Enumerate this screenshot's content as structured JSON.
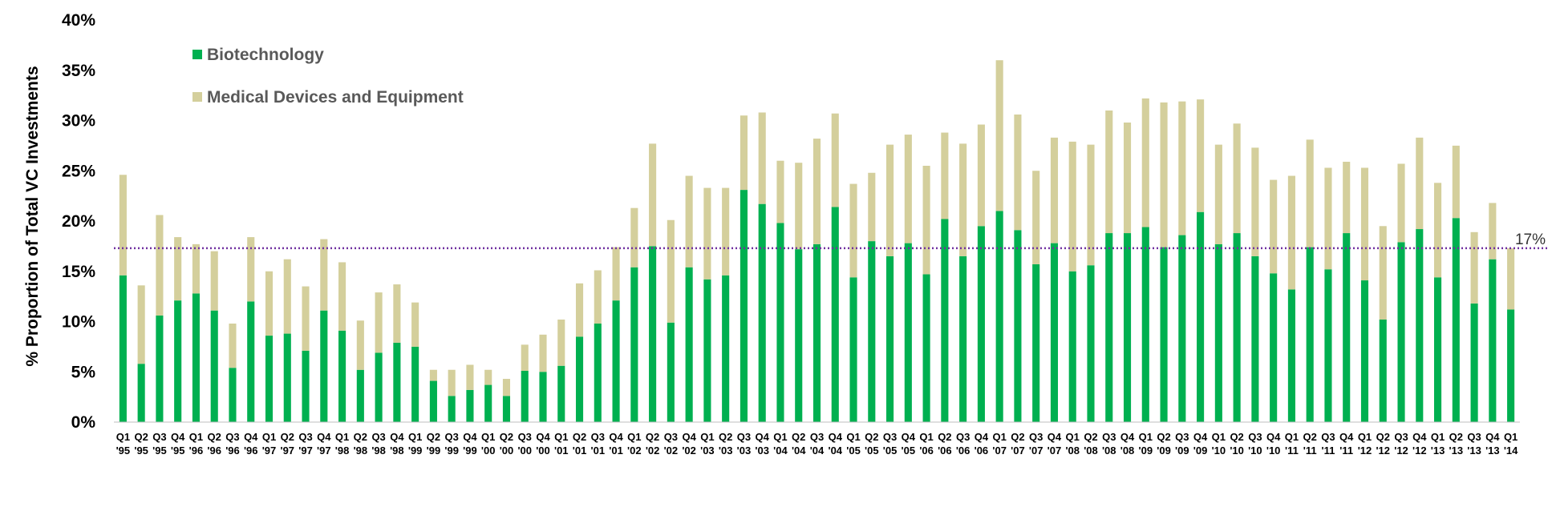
{
  "chart_data": {
    "type": "bar",
    "stacked": true,
    "ylabel": "% Proportion of Total VC Investments",
    "y_ticks": [
      "0%",
      "5%",
      "10%",
      "15%",
      "20%",
      "25%",
      "30%",
      "35%",
      "40%"
    ],
    "ylim": [
      0,
      40
    ],
    "grid": false,
    "legend_position": "top-left",
    "colors": {
      "biotech": "#00b050",
      "meddev": "#d4cf9c",
      "reference": "#7030a0"
    },
    "reference_line": {
      "value": 17.3,
      "label": "17%"
    },
    "categories": [
      "Q1 '95",
      "Q2 '95",
      "Q3 '95",
      "Q4 '95",
      "Q1 '96",
      "Q2 '96",
      "Q3 '96",
      "Q4 '96",
      "Q1 '97",
      "Q2 '97",
      "Q3 '97",
      "Q4 '97",
      "Q1 '98",
      "Q2 '98",
      "Q3 '98",
      "Q4 '98",
      "Q1 '99",
      "Q2 '99",
      "Q3 '99",
      "Q4 '99",
      "Q1 '00",
      "Q2 '00",
      "Q3 '00",
      "Q4 '00",
      "Q1 '01",
      "Q2 '01",
      "Q3 '01",
      "Q4 '01",
      "Q1 '02",
      "Q2 '02",
      "Q3 '02",
      "Q4 '02",
      "Q1 '03",
      "Q2 '03",
      "Q3 '03",
      "Q4 '03",
      "Q1 '04",
      "Q2 '04",
      "Q3 '04",
      "Q4 '04",
      "Q1 '05",
      "Q2 '05",
      "Q3 '05",
      "Q4 '05",
      "Q1 '06",
      "Q2 '06",
      "Q3 '06",
      "Q4 '06",
      "Q1 '07",
      "Q2 '07",
      "Q3 '07",
      "Q4 '07",
      "Q1 '08",
      "Q2 '08",
      "Q3 '08",
      "Q4 '08",
      "Q1 '09",
      "Q2 '09",
      "Q3 '09",
      "Q4 '09",
      "Q1 '10",
      "Q2 '10",
      "Q3 '10",
      "Q4 '10",
      "Q1 '11",
      "Q2 '11",
      "Q3 '11",
      "Q4 '11",
      "Q1 '12",
      "Q2 '12",
      "Q3 '12",
      "Q4 '12",
      "Q1 '13",
      "Q2 '13",
      "Q3 '13",
      "Q4 '13",
      "Q1 '14"
    ],
    "series": [
      {
        "name": "Biotechnology",
        "values": [
          14.6,
          5.8,
          10.6,
          12.1,
          12.8,
          11.1,
          5.4,
          12.0,
          8.6,
          8.8,
          7.1,
          11.1,
          9.1,
          5.2,
          6.9,
          7.9,
          7.5,
          4.1,
          2.6,
          3.2,
          3.7,
          2.6,
          5.1,
          5.0,
          5.6,
          8.5,
          9.8,
          12.1,
          15.4,
          17.5,
          9.9,
          15.4,
          14.2,
          14.6,
          23.1,
          21.7,
          19.8,
          17.2,
          17.7,
          21.4,
          14.4,
          18.0,
          16.5,
          17.8,
          14.7,
          20.2,
          16.5,
          19.5,
          21.0,
          19.1,
          15.7,
          17.8,
          15.0,
          15.6,
          18.8,
          18.8,
          19.4,
          17.4,
          18.6,
          20.9,
          17.7,
          18.8,
          16.5,
          14.8,
          13.2,
          17.4,
          15.2,
          18.8,
          14.1,
          10.2,
          17.9,
          19.2,
          14.4,
          20.3,
          11.8,
          16.2,
          11.2
        ]
      },
      {
        "name": "Medical Devices and Equipment",
        "values": [
          10.0,
          7.8,
          10.0,
          6.3,
          4.9,
          5.9,
          4.4,
          6.4,
          6.4,
          7.4,
          6.4,
          7.1,
          6.8,
          4.9,
          6.0,
          5.8,
          4.4,
          1.1,
          2.6,
          2.5,
          1.5,
          1.7,
          2.6,
          3.7,
          4.6,
          5.3,
          5.3,
          5.3,
          5.9,
          10.2,
          10.2,
          9.1,
          9.1,
          8.7,
          7.4,
          9.1,
          6.2,
          8.6,
          10.5,
          9.3,
          9.3,
          6.8,
          11.1,
          10.8,
          10.8,
          8.6,
          11.2,
          10.1,
          15.0,
          11.5,
          9.3,
          10.5,
          12.9,
          12.0,
          12.2,
          11.0,
          12.8,
          14.4,
          13.3,
          11.2,
          9.9,
          10.9,
          10.8,
          9.3,
          11.3,
          10.7,
          10.1,
          7.1,
          11.2,
          9.3,
          7.8,
          9.1,
          9.4,
          7.2,
          7.1,
          5.6,
          6.1
        ]
      }
    ]
  }
}
